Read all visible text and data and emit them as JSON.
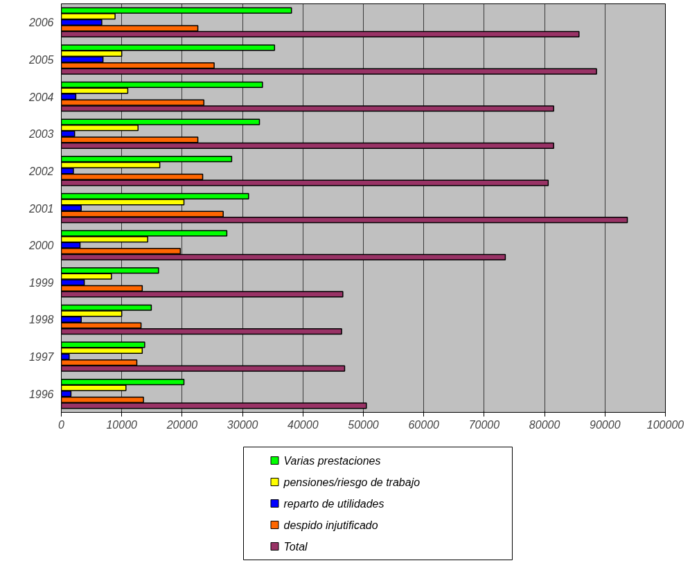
{
  "chart_data": {
    "type": "bar",
    "orientation": "horizontal",
    "categories": [
      "2006",
      "2005",
      "2004",
      "2003",
      "2002",
      "2001",
      "2000",
      "1999",
      "1998",
      "1997",
      "1996"
    ],
    "series": [
      {
        "name": "Varias prestaciones",
        "color": "#00ff00",
        "values": [
          38100,
          35300,
          33300,
          32800,
          28200,
          31000,
          27400,
          16100,
          14900,
          13800,
          20300
        ]
      },
      {
        "name": "pensiones/riesgo de trabajo",
        "color": "#ffff00",
        "values": [
          8900,
          10000,
          11000,
          12700,
          16300,
          20300,
          14300,
          8300,
          10000,
          13400,
          10700
        ]
      },
      {
        "name": "reparto de utilidades",
        "color": "#0000ff",
        "values": [
          6700,
          6900,
          2400,
          2200,
          2000,
          3300,
          3100,
          3800,
          3300,
          1300,
          1600
        ]
      },
      {
        "name": "despido injutificado",
        "color": "#ff6600",
        "values": [
          22600,
          25300,
          23600,
          22600,
          23400,
          26800,
          19700,
          13400,
          13200,
          12500,
          13600
        ]
      },
      {
        "name": "Total",
        "color": "#993366",
        "values": [
          85700,
          88600,
          81500,
          81500,
          80600,
          93700,
          73500,
          46600,
          46400,
          46900,
          50500
        ]
      }
    ],
    "xlim": [
      0,
      100000
    ],
    "xticks": [
      0,
      10000,
      20000,
      30000,
      40000,
      50000,
      60000,
      70000,
      80000,
      90000,
      100000
    ],
    "grid": "x",
    "legend": "bottom"
  }
}
